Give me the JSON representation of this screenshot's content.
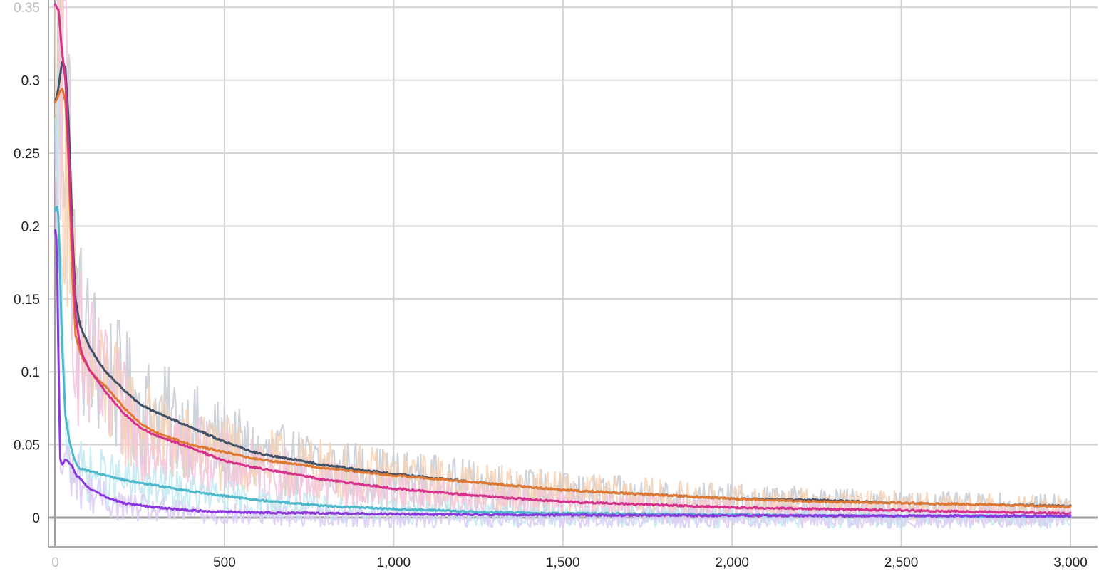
{
  "chart_data": {
    "type": "line",
    "title": "",
    "xlabel": "",
    "ylabel": "",
    "xlim": [
      -20,
      3080
    ],
    "ylim": [
      -0.02,
      0.355
    ],
    "x_ticks": [
      0,
      500,
      1000,
      1500,
      2000,
      2500,
      3000
    ],
    "x_tick_labels": [
      "0",
      "500",
      "1,000",
      "1,500",
      "2,000",
      "2,500",
      "3,000"
    ],
    "y_ticks": [
      0,
      0.05,
      0.1,
      0.15,
      0.2,
      0.25,
      0.3,
      0.35
    ],
    "y_tick_labels": [
      "0",
      "0.05",
      "0.1",
      "0.15",
      "0.2",
      "0.25",
      "0.3",
      "0.35"
    ],
    "grid": true,
    "legend": "none",
    "series": [
      {
        "color": "#425066",
        "raw_color": "#c7cbd3",
        "x": [
          0,
          10,
          20,
          30,
          40,
          50,
          60,
          70,
          80,
          100,
          125,
          150,
          200,
          250,
          300,
          400,
          500,
          600,
          800,
          1000,
          1250,
          1500,
          1750,
          2000,
          2250,
          2500,
          2750,
          3000
        ],
        "y": [
          0.285,
          0.295,
          0.313,
          0.308,
          0.27,
          0.2,
          0.15,
          0.135,
          0.128,
          0.118,
          0.108,
          0.1,
          0.088,
          0.078,
          0.072,
          0.062,
          0.052,
          0.044,
          0.036,
          0.03,
          0.024,
          0.019,
          0.016,
          0.013,
          0.012,
          0.01,
          0.009,
          0.008
        ]
      },
      {
        "color": "#df7832",
        "raw_color": "#f7d2b4",
        "x": [
          0,
          10,
          20,
          30,
          40,
          50,
          60,
          70,
          80,
          100,
          125,
          150,
          200,
          250,
          300,
          400,
          500,
          600,
          800,
          1000,
          1250,
          1500,
          1750,
          2000,
          2250,
          2500,
          2750,
          3000
        ],
        "y": [
          0.285,
          0.29,
          0.295,
          0.285,
          0.24,
          0.17,
          0.125,
          0.116,
          0.11,
          0.102,
          0.095,
          0.09,
          0.076,
          0.065,
          0.058,
          0.05,
          0.045,
          0.04,
          0.034,
          0.029,
          0.024,
          0.019,
          0.016,
          0.013,
          0.011,
          0.01,
          0.009,
          0.0075
        ]
      },
      {
        "color": "#d5318a",
        "raw_color": "#f3c4de",
        "x": [
          0,
          10,
          20,
          30,
          40,
          50,
          60,
          70,
          80,
          100,
          125,
          150,
          200,
          250,
          300,
          400,
          500,
          600,
          800,
          1000,
          1250,
          1500,
          1750,
          2000,
          2250,
          2500,
          2750,
          3000
        ],
        "y": [
          0.352,
          0.348,
          0.32,
          0.3,
          0.25,
          0.19,
          0.14,
          0.122,
          0.112,
          0.102,
          0.094,
          0.086,
          0.072,
          0.062,
          0.056,
          0.048,
          0.039,
          0.034,
          0.026,
          0.02,
          0.015,
          0.011,
          0.009,
          0.007,
          0.006,
          0.005,
          0.004,
          0.003
        ]
      },
      {
        "color": "#4eb8cb",
        "raw_color": "#bfeaf1",
        "x": [
          0,
          5,
          10,
          20,
          30,
          40,
          50,
          60,
          70,
          100,
          150,
          200,
          300,
          400,
          500,
          600,
          800,
          1000,
          1250,
          1500,
          1750,
          2000,
          2250,
          2500,
          2750,
          3000
        ],
        "y": [
          0.21,
          0.215,
          0.205,
          0.12,
          0.07,
          0.055,
          0.045,
          0.038,
          0.034,
          0.032,
          0.029,
          0.026,
          0.022,
          0.018,
          0.015,
          0.012,
          0.008,
          0.006,
          0.004,
          0.003,
          0.0025,
          0.002,
          0.0015,
          0.0012,
          0.001,
          0.0008
        ]
      },
      {
        "color": "#8a37dd",
        "raw_color": "#dccbf6",
        "x": [
          0,
          5,
          10,
          15,
          20,
          30,
          40,
          50,
          60,
          80,
          100,
          150,
          200,
          300,
          400,
          500,
          600,
          800,
          1000,
          1250,
          1500,
          1750,
          2000,
          2250,
          2500,
          2750,
          3000
        ],
        "y": [
          0.197,
          0.19,
          0.1,
          0.04,
          0.036,
          0.04,
          0.038,
          0.035,
          0.03,
          0.025,
          0.02,
          0.014,
          0.01,
          0.007,
          0.005,
          0.004,
          0.0035,
          0.003,
          0.0025,
          0.002,
          0.0018,
          0.0016,
          0.0015,
          0.0013,
          0.0012,
          0.0011,
          0.001
        ]
      }
    ]
  }
}
